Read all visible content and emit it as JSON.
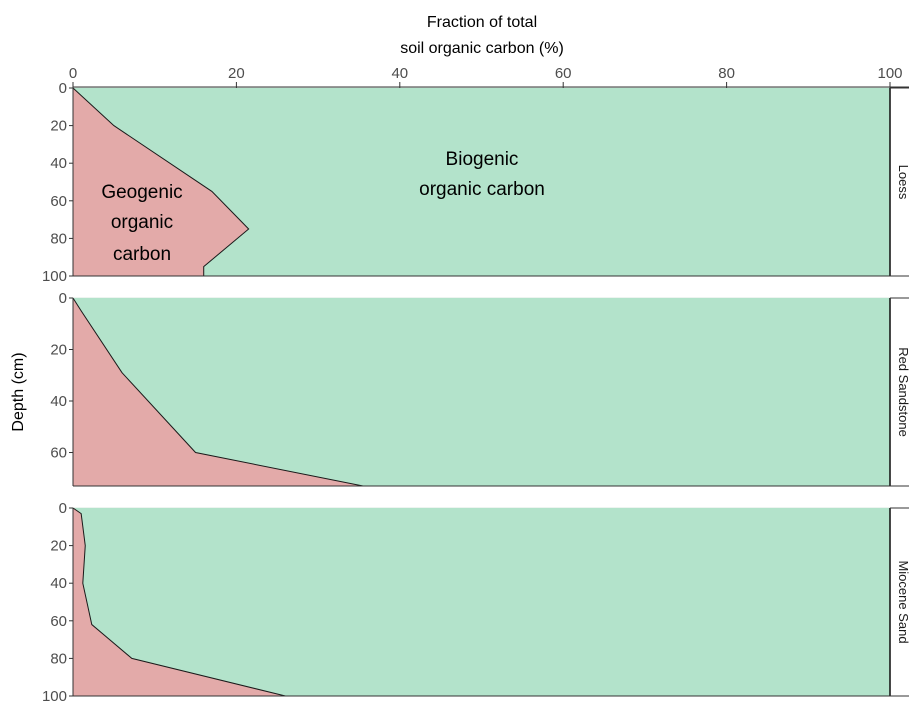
{
  "chart_data": {
    "type": "area",
    "xlabel_line1": "Fraction of total",
    "xlabel_line2": "soil organic carbon (%)",
    "ylabel": "Depth (cm)",
    "xlim": [
      0,
      100
    ],
    "x_ticks": [
      "0",
      "20",
      "40",
      "60",
      "80",
      "100"
    ],
    "y_reversed": true,
    "series_fill_colors": {
      "geogenic": "#e3aaa9",
      "biogenic": "#b3e3cb"
    },
    "outline_color": "#1a1a1a",
    "annotations": {
      "biogenic_line1": "Biogenic",
      "biogenic_line2": "organic carbon",
      "geogenic_line1": "Geogenic",
      "geogenic_line2": "organic",
      "geogenic_line3": "carbon"
    },
    "panels": [
      {
        "strip_label": "Loess",
        "ylim": [
          0,
          100
        ],
        "y_ticks": [
          "0",
          "20",
          "40",
          "60",
          "80",
          "100"
        ],
        "depth": [
          0,
          20,
          55,
          75,
          95,
          100
        ],
        "geogenic_percent": [
          0,
          5,
          17,
          21.5,
          16,
          16
        ]
      },
      {
        "strip_label": "Red Sandstone",
        "ylim": [
          0,
          73
        ],
        "y_ticks": [
          "0",
          "20",
          "40",
          "60"
        ],
        "depth": [
          0,
          5,
          29,
          60,
          73
        ],
        "geogenic_percent": [
          0,
          1,
          6,
          15,
          35.5
        ]
      },
      {
        "strip_label": "Miocene Sand",
        "ylim": [
          0,
          100
        ],
        "y_ticks": [
          "0",
          "20",
          "40",
          "60",
          "80",
          "100"
        ],
        "depth": [
          0,
          3,
          20,
          40,
          62,
          80,
          100
        ],
        "geogenic_percent": [
          0,
          1,
          1.5,
          1.2,
          2.3,
          7.2,
          26
        ]
      }
    ]
  }
}
